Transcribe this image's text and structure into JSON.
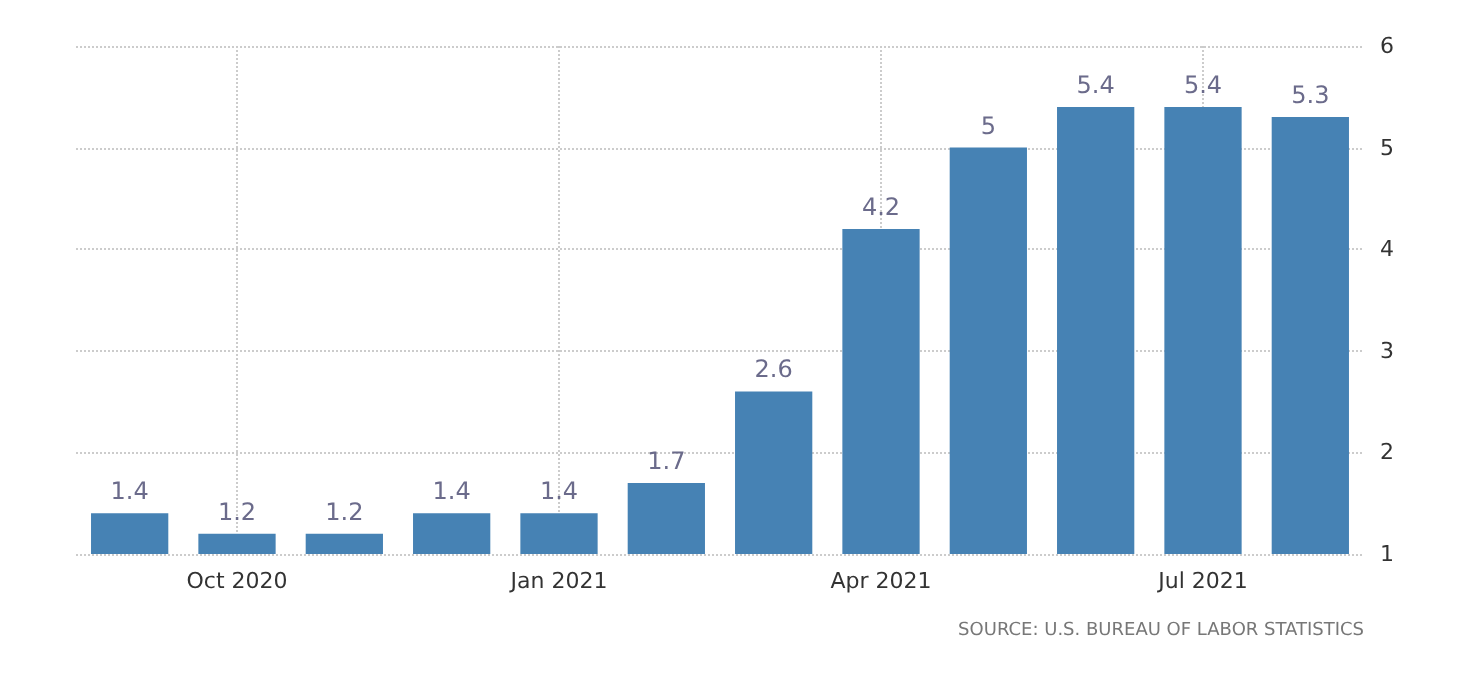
{
  "chart_data": {
    "type": "bar",
    "categories": [
      null,
      "Oct 2020",
      null,
      null,
      "Jan 2021",
      null,
      null,
      "Apr 2021",
      null,
      null,
      "Jul 2021",
      null
    ],
    "values": [
      1.4,
      1.2,
      1.2,
      1.4,
      1.4,
      1.7,
      2.6,
      4.2,
      5,
      5.4,
      5.4,
      5.3
    ],
    "color": "#4682b4",
    "ylim": [
      1,
      6
    ],
    "yticks": [
      1,
      2,
      3,
      4,
      5,
      6
    ],
    "grid": true,
    "data_labels": true,
    "annotations": [
      "SOURCE: U.S. BUREAU OF LABOR STATISTICS"
    ]
  }
}
